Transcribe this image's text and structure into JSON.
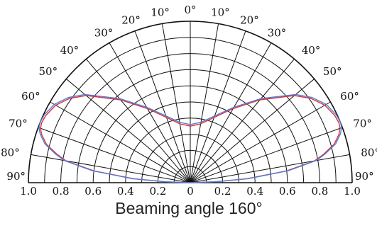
{
  "chart_data": {
    "type": "polar",
    "title": "Beaming angle 160°",
    "angle_ticks": [
      "0°",
      "10°",
      "20°",
      "30°",
      "40°",
      "50°",
      "60°",
      "70°",
      "80°",
      "90°"
    ],
    "radial_ticks": [
      "1.0",
      "0.8",
      "0.6",
      "0.4",
      "0.2",
      "0",
      "0.2",
      "0.4",
      "0.6",
      "0.8",
      "1.0"
    ],
    "rlim": [
      0,
      1.0
    ],
    "grid": true,
    "series": [
      {
        "color": "#e0303a",
        "theta_deg": [
          0,
          10,
          20,
          30,
          40,
          50,
          55,
          60,
          65,
          68,
          70,
          72,
          75,
          78,
          80,
          83,
          86,
          88,
          90
        ],
        "r": [
          0.35,
          0.37,
          0.43,
          0.53,
          0.67,
          0.84,
          0.91,
          0.96,
          0.985,
          0.99,
          0.985,
          0.965,
          0.92,
          0.84,
          0.78,
          0.6,
          0.35,
          0.15,
          0.0
        ]
      },
      {
        "color": "#4f7fd6",
        "theta_deg": [
          0,
          10,
          20,
          30,
          40,
          50,
          55,
          60,
          65,
          68,
          70,
          72,
          75,
          78,
          80,
          83,
          86,
          88,
          90
        ],
        "r": [
          0.36,
          0.38,
          0.44,
          0.54,
          0.68,
          0.85,
          0.92,
          0.97,
          0.995,
          1.0,
          0.995,
          0.975,
          0.93,
          0.85,
          0.79,
          0.61,
          0.36,
          0.16,
          0.0
        ]
      }
    ]
  }
}
